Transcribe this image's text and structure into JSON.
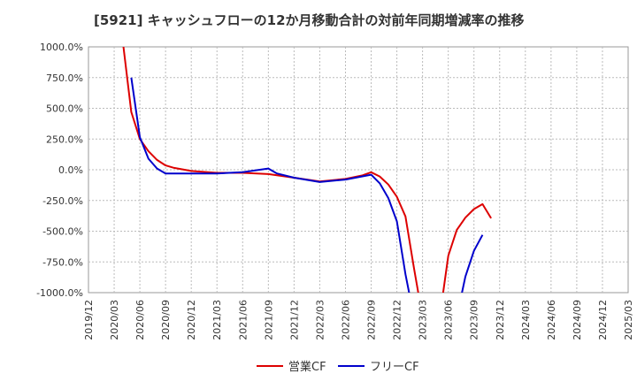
{
  "title": "[5921]  キャッシュフローの12か月移動合計の対前年同期増減率の推移",
  "chart_data": {
    "type": "line",
    "title": "[5921]  キャッシュフローの12か月移動合計の対前年同期増減率の推移",
    "xlabel": "",
    "ylabel": "",
    "ylim": [
      -1000,
      1000
    ],
    "y_ticks": [
      1000,
      750,
      500,
      250,
      0,
      -250,
      -500,
      -750,
      -1000
    ],
    "y_tick_labels": [
      "1000.0%",
      "750.0%",
      "500.0%",
      "250.0%",
      "0.0%",
      "-250.0%",
      "-500.0%",
      "-750.0%",
      "-1000.0%"
    ],
    "x_range": [
      "2019/12",
      "2025/03"
    ],
    "x_ticks": [
      "2019/12",
      "2020/03",
      "2020/06",
      "2020/09",
      "2020/12",
      "2021/03",
      "2021/06",
      "2021/09",
      "2021/12",
      "2022/03",
      "2022/06",
      "2022/09",
      "2022/12",
      "2023/03",
      "2023/06",
      "2023/09",
      "2023/12",
      "2024/03",
      "2024/06",
      "2024/09",
      "2024/12",
      "2025/03"
    ],
    "grid": true,
    "legend_position": "bottom",
    "series": [
      {
        "name": "営業CF",
        "color": "#dd0000",
        "points": [
          [
            "2020/04",
            1050
          ],
          [
            "2020/05",
            470
          ],
          [
            "2020/06",
            250
          ],
          [
            "2020/07",
            150
          ],
          [
            "2020/08",
            80
          ],
          [
            "2020/09",
            35
          ],
          [
            "2020/10",
            15
          ],
          [
            "2020/12",
            -10
          ],
          [
            "2021/03",
            -25
          ],
          [
            "2021/06",
            -25
          ],
          [
            "2021/09",
            -35
          ],
          [
            "2021/12",
            -65
          ],
          [
            "2022/03",
            -95
          ],
          [
            "2022/06",
            -75
          ],
          [
            "2022/08",
            -45
          ],
          [
            "2022/09",
            -20
          ],
          [
            "2022/10",
            -55
          ],
          [
            "2022/11",
            -120
          ],
          [
            "2022/12",
            -220
          ],
          [
            "2023/01",
            -380
          ],
          [
            "2023/02",
            -800
          ],
          [
            "2023/03",
            -1200
          ],
          [
            "2023/05",
            -1200
          ],
          [
            "2023/06",
            -700
          ],
          [
            "2023/07",
            -490
          ],
          [
            "2023/08",
            -390
          ],
          [
            "2023/09",
            -320
          ],
          [
            "2023/10",
            -280
          ],
          [
            "2023/11",
            -395
          ]
        ]
      },
      {
        "name": "フリーCF",
        "color": "#0000cc",
        "points": [
          [
            "2020/05",
            750
          ],
          [
            "2020/06",
            265
          ],
          [
            "2020/07",
            90
          ],
          [
            "2020/08",
            10
          ],
          [
            "2020/09",
            -30
          ],
          [
            "2020/12",
            -30
          ],
          [
            "2021/03",
            -30
          ],
          [
            "2021/06",
            -20
          ],
          [
            "2021/08",
            0
          ],
          [
            "2021/09",
            10
          ],
          [
            "2021/10",
            -30
          ],
          [
            "2021/12",
            -65
          ],
          [
            "2022/03",
            -100
          ],
          [
            "2022/06",
            -80
          ],
          [
            "2022/09",
            -40
          ],
          [
            "2022/10",
            -110
          ],
          [
            "2022/11",
            -230
          ],
          [
            "2022/12",
            -420
          ],
          [
            "2023/01",
            -850
          ],
          [
            "2023/02",
            -1200
          ],
          [
            "2023/07",
            -1200
          ],
          [
            "2023/08",
            -870
          ],
          [
            "2023/09",
            -660
          ],
          [
            "2023/10",
            -530
          ]
        ]
      }
    ]
  }
}
